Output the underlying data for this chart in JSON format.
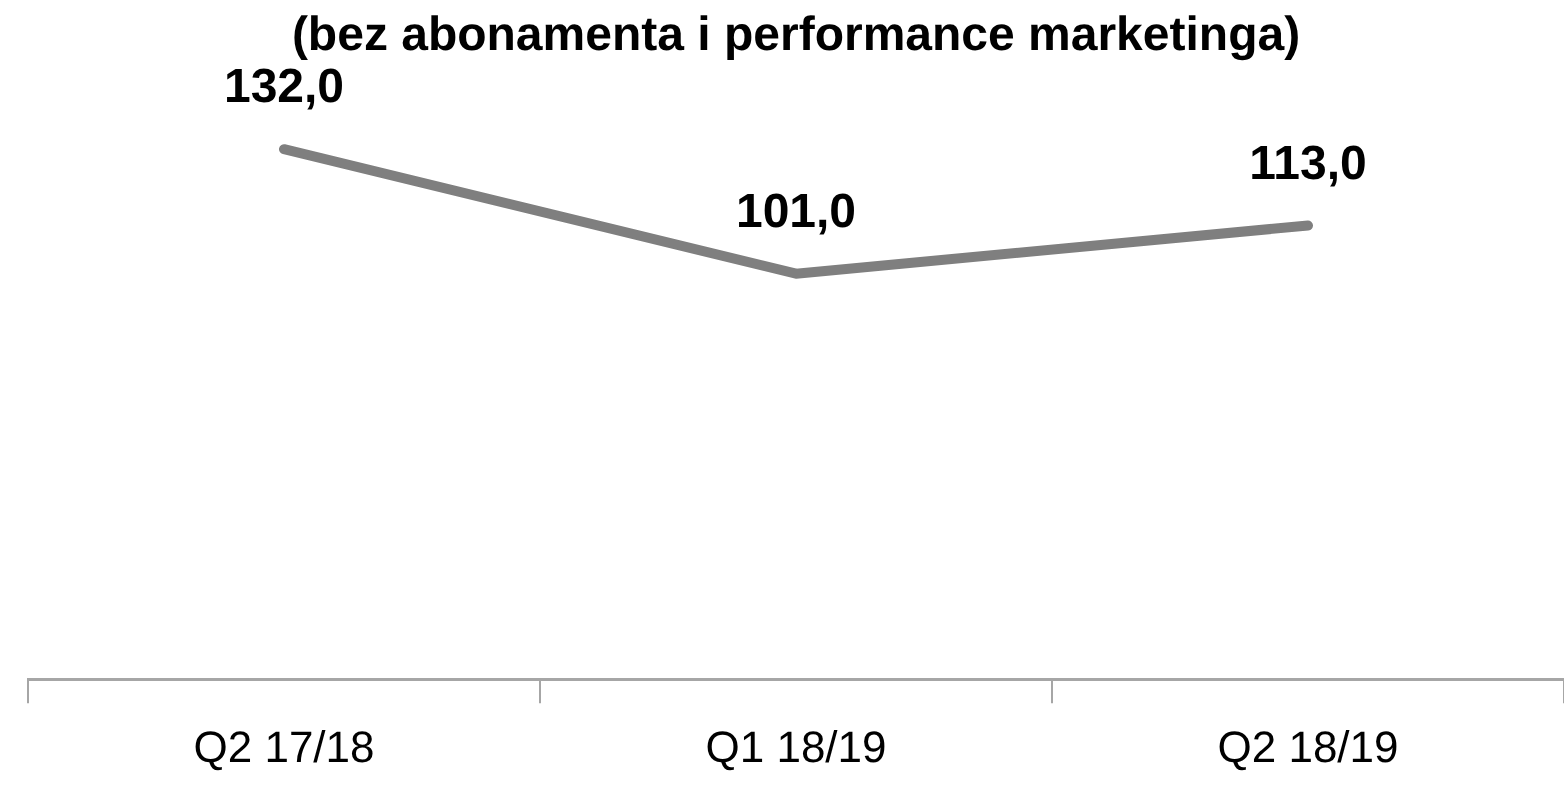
{
  "chart_data": {
    "type": "line",
    "title": "(bez abonamenta i performance marketinga)",
    "categories": [
      "Q2 17/18",
      "Q1 18/19",
      "Q2 18/19"
    ],
    "series": [
      {
        "color": "#7f7f7f",
        "values": [
          132,
          101,
          113
        ],
        "value_labels": [
          "132,0",
          "101,0",
          "113,0"
        ]
      }
    ],
    "grid": false,
    "legend": false,
    "marker": "none",
    "line_style": "solid"
  }
}
